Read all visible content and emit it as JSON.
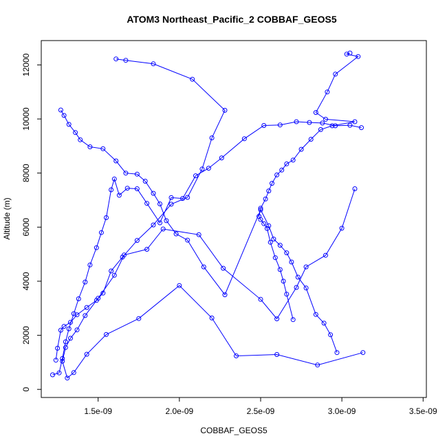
{
  "chart_data": {
    "type": "scatter",
    "title": "ATOM3 Northeast_Pacific_2 COBBAF_GEOS5",
    "xlabel": "COBBAF_GEOS5",
    "ylabel": "Altitude (m)",
    "xlim": [
      1.15e-09,
      3.52e-09
    ],
    "ylim": [
      -300,
      12900
    ],
    "xticks": [
      1.5e-09,
      2e-09,
      2.5e-09,
      3e-09,
      3.5e-09
    ],
    "xtick_labels": [
      "1.5e-09",
      "2.0e-09",
      "2.5e-09",
      "3.0e-09",
      "3.5e-09"
    ],
    "yticks": [
      0,
      2000,
      4000,
      6000,
      8000,
      10000,
      12000
    ],
    "ytick_labels": [
      "0",
      "2000",
      "4000",
      "6000",
      "8000",
      "10000",
      "12000"
    ],
    "color": "#0000ff",
    "marker": "open-circle",
    "connect_points": true,
    "series": [
      {
        "x": [
          1.22e-09,
          1.26e-09,
          1.28e-09,
          1.3e-09,
          1.32e-09,
          1.35e-09,
          1.38e-09,
          1.42e-09,
          1.45e-09,
          1.49e-09,
          1.52e-09,
          1.55e-09,
          1.58e-09,
          1.6e-09,
          1.63e-09,
          1.68e-09,
          1.74e-09,
          1.8e-09,
          1.88e-09,
          1.95e-09,
          2.02e-09,
          2.1e-09,
          2.18e-09,
          2.26e-09,
          2.4e-09,
          2.52e-09,
          2.62e-09,
          2.72e-09,
          2.8e-09,
          2.88e-09,
          2.96e-09,
          3.05e-09,
          3.12e-09
        ],
        "y": [
          540,
          610,
          1140,
          1760,
          2240,
          2800,
          3350,
          3970,
          4600,
          5240,
          5800,
          6350,
          7380,
          7780,
          7180,
          7440,
          7420,
          6880,
          6160,
          7090,
          7060,
          7900,
          8180,
          8560,
          9270,
          9760,
          9780,
          9900,
          9870,
          9850,
          9750,
          9770,
          9680
        ]
      },
      {
        "x": [
          3.13e-09,
          2.85e-09,
          2.6e-09,
          2.35e-09,
          2.2e-09,
          2e-09,
          1.75e-09,
          1.55e-09,
          1.43e-09,
          1.35e-09,
          1.31e-09,
          1.28e-09,
          1.3e-09,
          1.33e-09,
          1.37e-09,
          1.42e-09,
          1.5e-09,
          1.6e-09,
          1.66e-09,
          1.8e-09,
          1.9e-09,
          2.12e-09,
          2.27e-09,
          2.5e-09,
          2.6e-09,
          2.72e-09,
          2.78e-09,
          2.9e-09,
          3e-09,
          3.08e-09
        ],
        "y": [
          1360,
          900,
          1290,
          1240,
          2640,
          3840,
          2620,
          2030,
          1300,
          620,
          420,
          1040,
          1550,
          1890,
          2200,
          2730,
          3370,
          4220,
          4970,
          5180,
          5930,
          5720,
          4480,
          3330,
          2610,
          3770,
          4530,
          4960,
          5960,
          7420
        ]
      },
      {
        "x": [
          1.27e-09,
          1.29e-09,
          1.32e-09,
          1.36e-09,
          1.39e-09,
          1.45e-09,
          1.53e-09,
          1.61e-09,
          1.67e-09,
          1.74e-09,
          1.79e-09,
          1.84e-09,
          1.88e-09,
          1.92e-09,
          1.98e-09,
          2.05e-09,
          2.15e-09,
          2.28e-09,
          2.5e-09,
          2.55e-09,
          2.58e-09,
          2.62e-09,
          2.66e-09,
          2.69e-09,
          2.73e-09,
          2.78e-09,
          2.84e-09,
          2.89e-09,
          2.93e-09,
          2.97e-09
        ],
        "y": [
          10330,
          10130,
          9800,
          9500,
          9230,
          8970,
          8900,
          8450,
          8000,
          7960,
          7700,
          7250,
          6860,
          6240,
          5750,
          5520,
          4530,
          3500,
          6640,
          6050,
          5560,
          5330,
          5050,
          4710,
          4150,
          3750,
          2770,
          2450,
          2020,
          1360
        ]
      },
      {
        "x": [
          1.61e-09,
          1.67e-09,
          1.84e-09,
          2.08e-09,
          2.28e-09,
          2.2e-09,
          2.14e-09,
          2.05e-09,
          1.95e-09,
          1.84e-09,
          1.74e-09,
          1.65e-09,
          1.58e-09,
          1.53e-09,
          1.49e-09,
          1.43e-09,
          1.37e-09,
          1.33e-09,
          1.29e-09,
          1.27e-09,
          1.25e-09,
          1.24e-09
        ],
        "y": [
          12220,
          12170,
          12040,
          11470,
          10320,
          9300,
          8150,
          7100,
          6850,
          6080,
          5510,
          4890,
          4380,
          3560,
          3290,
          3030,
          2760,
          2480,
          2330,
          2190,
          1520,
          1080
        ]
      },
      {
        "x": [
          3.05e-09,
          3.03e-09,
          3.1e-09,
          2.96e-09,
          2.91e-09,
          2.84e-09,
          2.9e-09,
          3.08e-09,
          2.94e-09,
          2.87e-09,
          2.81e-09,
          2.75e-09,
          2.7e-09,
          2.66e-09,
          2.63e-09,
          2.6e-09,
          2.57e-09,
          2.55e-09,
          2.53e-09,
          2.5e-09,
          2.49e-09,
          2.5e-09,
          2.52e-09,
          2.54e-09,
          2.56e-09,
          2.59e-09,
          2.62e-09,
          2.64e-09,
          2.66e-09,
          2.7e-09
        ],
        "y": [
          12440,
          12400,
          12310,
          11660,
          11000,
          10240,
          9990,
          9900,
          9750,
          9610,
          9250,
          8880,
          8480,
          8340,
          8110,
          7930,
          7620,
          7340,
          7040,
          6700,
          6400,
          6280,
          6130,
          5950,
          5440,
          4870,
          4430,
          4000,
          3520,
          2580
        ]
      }
    ]
  }
}
